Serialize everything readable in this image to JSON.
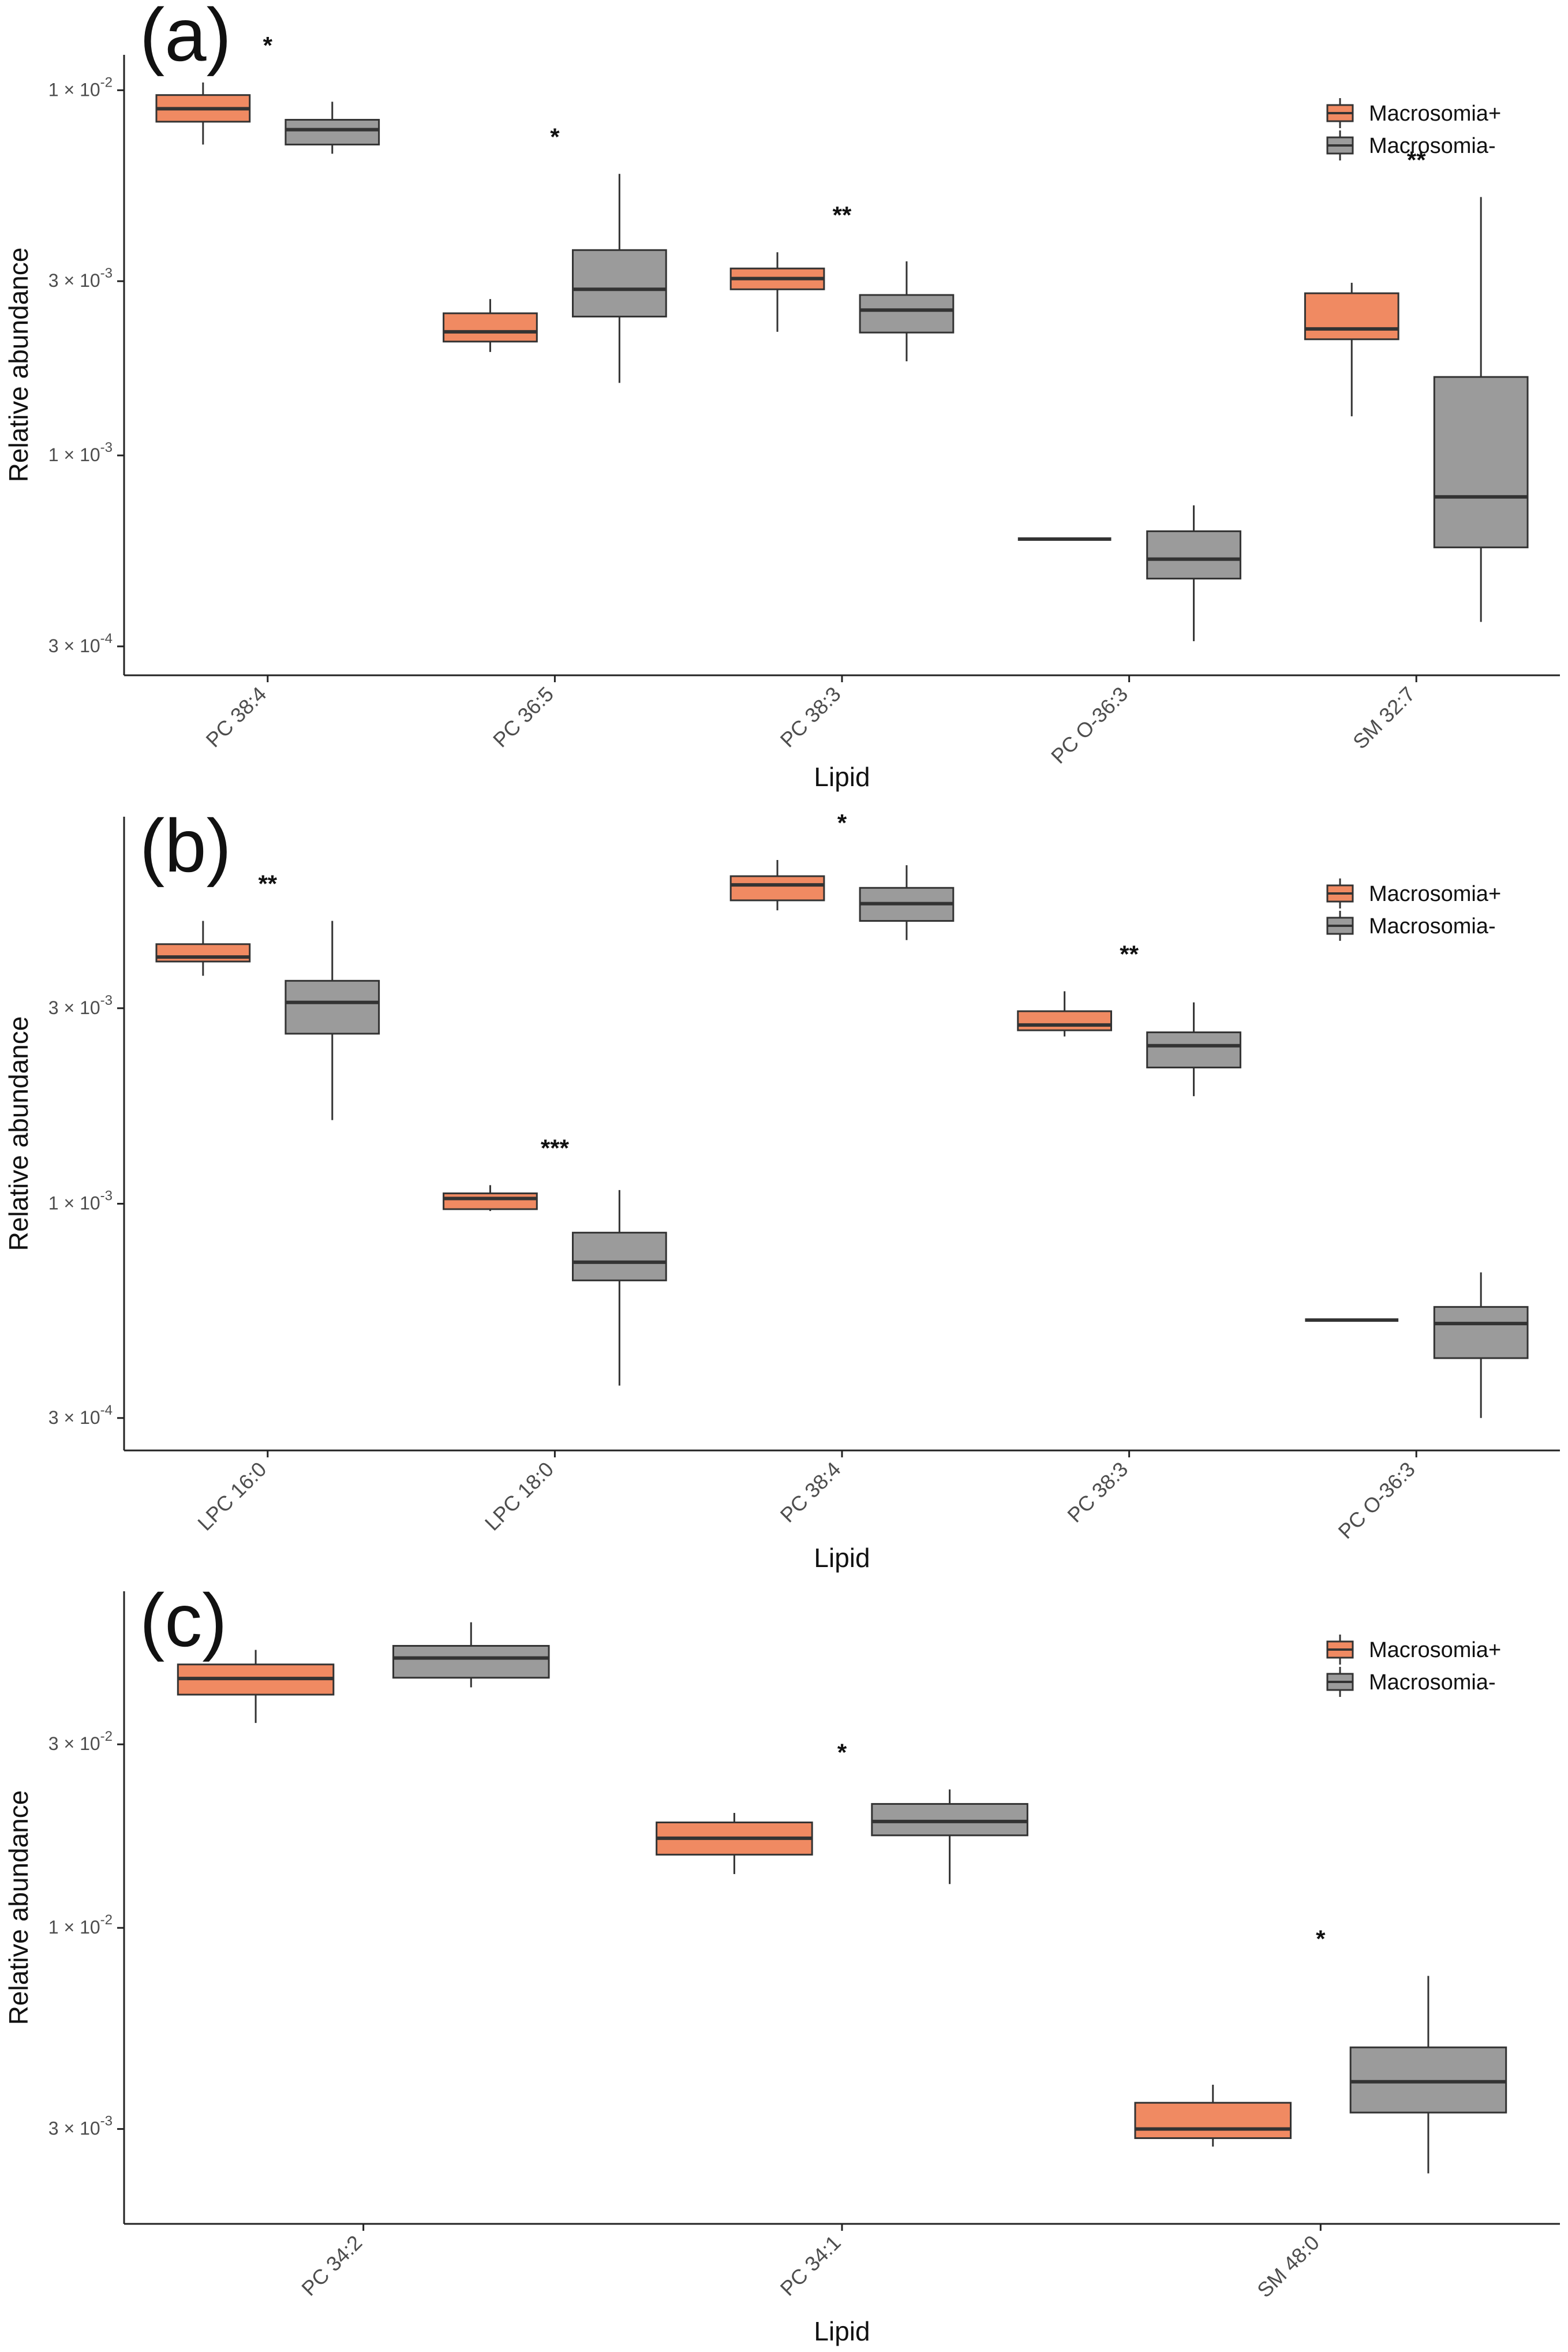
{
  "colors": {
    "positive": "#F08A62",
    "negative": "#9B9B9B",
    "stroke": "#333333",
    "axis": "#222222",
    "text": "#111111",
    "tick_text": "#4D4D4D"
  },
  "chart_data": [
    {
      "type": "boxplot",
      "panel_label": "(a)",
      "scale": "log10",
      "xlabel": "Lipid",
      "ylabel": "Relative abundance",
      "ylim": [
        0.00025,
        0.0125
      ],
      "y_ticks": [
        {
          "value": 0.01,
          "mant": "1",
          "exp": "-2"
        },
        {
          "value": 0.003,
          "mant": "3",
          "exp": "-3"
        },
        {
          "value": 0.001,
          "mant": "1",
          "exp": "-3"
        },
        {
          "value": 0.0003,
          "mant": "3",
          "exp": "-4"
        }
      ],
      "legend": [
        {
          "label": "Macrosomia+",
          "color": "#F08A62"
        },
        {
          "label": "Macrosomia-",
          "color": "#9B9B9B"
        }
      ],
      "legend_position": "top-right",
      "categories": [
        "PC 38:4",
        "PC 36:5",
        "PC 38:3",
        "PC O-36:3",
        "SM 32:7"
      ],
      "significance": [
        "*",
        "*",
        "**",
        "",
        "**"
      ],
      "series": [
        {
          "name": "Macrosomia+",
          "boxes": [
            {
              "min": 0.0071,
              "q1": 0.0082,
              "median": 0.0089,
              "q3": 0.0097,
              "max": 0.0105
            },
            {
              "min": 0.00192,
              "q1": 0.00205,
              "median": 0.00218,
              "q3": 0.00245,
              "max": 0.00268
            },
            {
              "min": 0.00218,
              "q1": 0.00285,
              "median": 0.00305,
              "q3": 0.00325,
              "max": 0.0036
            },
            {
              "min": 0.00059,
              "q1": 0.00059,
              "median": 0.00059,
              "q3": 0.00059,
              "max": 0.00059
            },
            {
              "min": 0.00128,
              "q1": 0.00208,
              "median": 0.00222,
              "q3": 0.00278,
              "max": 0.00297
            }
          ]
        },
        {
          "name": "Macrosomia-",
          "boxes": [
            {
              "min": 0.0067,
              "q1": 0.0071,
              "median": 0.0078,
              "q3": 0.0083,
              "max": 0.0093
            },
            {
              "min": 0.00158,
              "q1": 0.0024,
              "median": 0.00285,
              "q3": 0.00365,
              "max": 0.0059
            },
            {
              "min": 0.00181,
              "q1": 0.00217,
              "median": 0.0025,
              "q3": 0.00275,
              "max": 0.0034
            },
            {
              "min": 0.00031,
              "q1": 0.00046,
              "median": 0.00052,
              "q3": 0.00062,
              "max": 0.00073
            },
            {
              "min": 0.00035,
              "q1": 0.00056,
              "median": 0.00077,
              "q3": 0.00164,
              "max": 0.0051
            }
          ]
        }
      ]
    },
    {
      "type": "boxplot",
      "panel_label": "(b)",
      "scale": "log10",
      "xlabel": "Lipid",
      "ylabel": "Relative abundance",
      "ylim": [
        0.00025,
        0.0088
      ],
      "y_ticks": [
        {
          "value": 0.003,
          "mant": "3",
          "exp": "-3"
        },
        {
          "value": 0.001,
          "mant": "1",
          "exp": "-3"
        },
        {
          "value": 0.0003,
          "mant": "3",
          "exp": "-4"
        }
      ],
      "legend": [
        {
          "label": "Macrosomia+",
          "color": "#F08A62"
        },
        {
          "label": "Macrosomia-",
          "color": "#9B9B9B"
        }
      ],
      "legend_position": "top-right",
      "categories": [
        "LPC 16:0",
        "LPC 18:0",
        "PC 38:4",
        "PC 38:3",
        "PC O-36:3"
      ],
      "significance": [
        "**",
        "***",
        "*",
        "**",
        ""
      ],
      "series": [
        {
          "name": "Macrosomia+",
          "boxes": [
            {
              "min": 0.0036,
              "q1": 0.0039,
              "median": 0.004,
              "q3": 0.0043,
              "max": 0.0049
            },
            {
              "min": 0.00096,
              "q1": 0.00097,
              "median": 0.00103,
              "q3": 0.00106,
              "max": 0.00111
            },
            {
              "min": 0.0052,
              "q1": 0.0055,
              "median": 0.006,
              "q3": 0.0063,
              "max": 0.0069
            },
            {
              "min": 0.00256,
              "q1": 0.00265,
              "median": 0.00273,
              "q3": 0.00295,
              "max": 0.0033
            },
            {
              "min": 0.00052,
              "q1": 0.00052,
              "median": 0.00052,
              "q3": 0.00052,
              "max": 0.00052
            }
          ]
        },
        {
          "name": "Macrosomia-",
          "boxes": [
            {
              "min": 0.0016,
              "q1": 0.0026,
              "median": 0.0031,
              "q3": 0.0035,
              "max": 0.0049
            },
            {
              "min": 0.00036,
              "q1": 0.00065,
              "median": 0.00072,
              "q3": 0.00085,
              "max": 0.00108
            },
            {
              "min": 0.0044,
              "q1": 0.0049,
              "median": 0.0054,
              "q3": 0.0059,
              "max": 0.0067
            },
            {
              "min": 0.00183,
              "q1": 0.00215,
              "median": 0.00243,
              "q3": 0.00262,
              "max": 0.0031
            },
            {
              "min": 0.0003,
              "q1": 0.00042,
              "median": 0.00051,
              "q3": 0.00056,
              "max": 0.00068
            }
          ]
        }
      ]
    },
    {
      "type": "boxplot",
      "panel_label": "(c)",
      "scale": "log10",
      "xlabel": "Lipid",
      "ylabel": "Relative abundance",
      "ylim": [
        0.0017,
        0.075
      ],
      "y_ticks": [
        {
          "value": 0.03,
          "mant": "3",
          "exp": "-2"
        },
        {
          "value": 0.01,
          "mant": "1",
          "exp": "-2"
        },
        {
          "value": 0.003,
          "mant": "3",
          "exp": "-3"
        }
      ],
      "legend": [
        {
          "label": "Macrosomia+",
          "color": "#F08A62"
        },
        {
          "label": "Macrosomia-",
          "color": "#9B9B9B"
        }
      ],
      "legend_position": "top-right",
      "categories": [
        "PC 34:2",
        "PC 34:1",
        "SM 48:0"
      ],
      "significance": [
        "",
        "*",
        "*"
      ],
      "series": [
        {
          "name": "Macrosomia+",
          "boxes": [
            {
              "min": 0.0341,
              "q1": 0.0404,
              "median": 0.0445,
              "q3": 0.0484,
              "max": 0.0528
            },
            {
              "min": 0.0138,
              "q1": 0.0155,
              "median": 0.0171,
              "q3": 0.0188,
              "max": 0.0199
            },
            {
              "min": 0.0027,
              "q1": 0.00284,
              "median": 0.003,
              "q3": 0.00351,
              "max": 0.00391
            }
          ]
        },
        {
          "name": "Macrosomia-",
          "boxes": [
            {
              "min": 0.0422,
              "q1": 0.0447,
              "median": 0.0503,
              "q3": 0.0541,
              "max": 0.0623
            },
            {
              "min": 0.013,
              "q1": 0.0174,
              "median": 0.0189,
              "q3": 0.021,
              "max": 0.0229
            },
            {
              "min": 0.0023,
              "q1": 0.00331,
              "median": 0.00398,
              "q3": 0.00489,
              "max": 0.0075
            }
          ]
        }
      ]
    }
  ]
}
